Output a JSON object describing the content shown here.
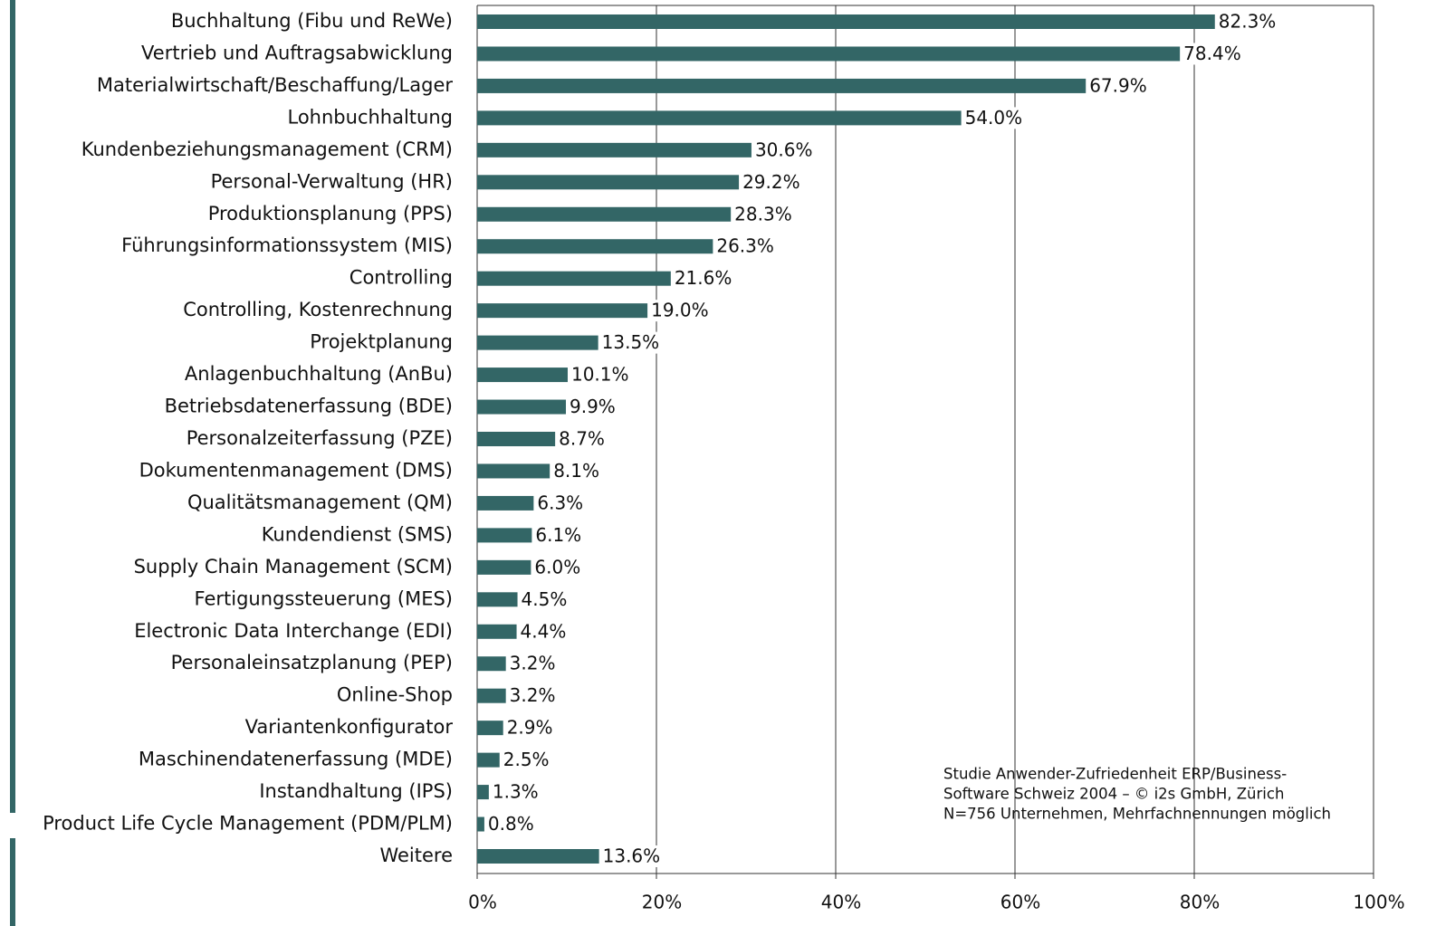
{
  "chart_data": {
    "type": "bar",
    "orientation": "horizontal",
    "categories": [
      "Buchhaltung (Fibu und ReWe)",
      "Vertrieb und Auftragsabwicklung",
      "Materialwirtschaft/Beschaffung/Lager",
      "Lohnbuchhaltung",
      "Kundenbeziehungsmanagement (CRM)",
      "Personal-Verwaltung (HR)",
      "Produktionsplanung (PPS)",
      "Führungsinformationssystem (MIS)",
      "Controlling",
      "Controlling, Kostenrechnung",
      "Projektplanung",
      "Anlagenbuchhaltung (AnBu)",
      "Betriebsdatenerfassung (BDE)",
      "Personalzeiterfassung (PZE)",
      "Dokumentenmanagement (DMS)",
      "Qualitätsmanagement (QM)",
      "Kundendienst (SMS)",
      "Supply Chain Management (SCM)",
      "Fertigungssteuerung (MES)",
      "Electronic Data Interchange (EDI)",
      "Personaleinsatzplanung (PEP)",
      "Online-Shop",
      "Variantenkonfigurator",
      "Maschinendatenerfassung (MDE)",
      "Instandhaltung (IPS)",
      "Product Life Cycle Management (PDM/PLM)",
      "Weitere"
    ],
    "values": [
      82.3,
      78.4,
      67.9,
      54.0,
      30.6,
      29.2,
      28.3,
      26.3,
      21.6,
      19.0,
      13.5,
      10.1,
      9.9,
      8.7,
      8.1,
      6.3,
      6.1,
      6.0,
      4.5,
      4.4,
      3.2,
      3.2,
      2.9,
      2.5,
      1.3,
      0.8,
      13.6
    ],
    "value_labels": [
      "82.3%",
      "78.4%",
      "67.9%",
      "54.0%",
      "30.6%",
      "29.2%",
      "28.3%",
      "26.3%",
      "21.6%",
      "19.0%",
      "13.5%",
      "10.1%",
      "9.9%",
      "8.7%",
      "8.1%",
      "6.3%",
      "6.1%",
      "6.0%",
      "4.5%",
      "4.4%",
      "3.2%",
      "3.2%",
      "2.9%",
      "2.5%",
      "1.3%",
      "0.8%",
      "13.6%"
    ],
    "color": "#336666",
    "xlim": [
      0,
      100
    ],
    "xticks": [
      {
        "value": 0,
        "label": "0%"
      },
      {
        "value": 20,
        "label": "20%"
      },
      {
        "value": 40,
        "label": "40%"
      },
      {
        "value": 60,
        "label": "60%"
      },
      {
        "value": 80,
        "label": "80%"
      },
      {
        "value": 100,
        "label": "100%"
      }
    ],
    "grid": true,
    "annotation": [
      "Studie Anwender-Zufriedenheit ERP/Business-",
      "Software Schweiz 2004 – © i2s GmbH, Zürich",
      "N=756 Unternehmen, Mehrfachnennungen möglich"
    ]
  }
}
